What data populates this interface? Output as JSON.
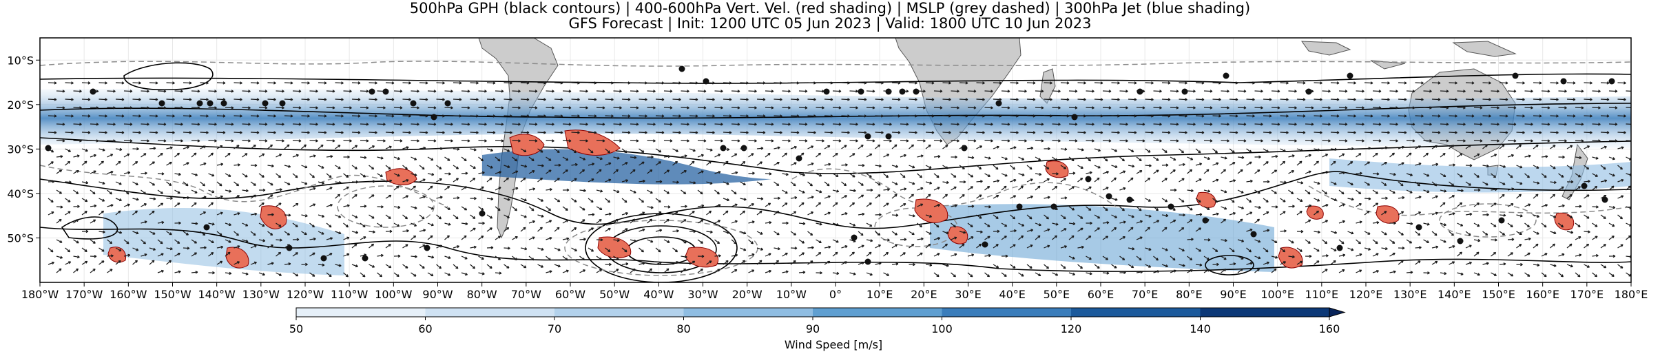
{
  "chart_data": {
    "type": "map",
    "title_line1": "500hPa GPH (black contours) | 400-600hPa Vert. Vel. (red shading) | MSLP (grey dashed) | 300hPa Jet (blue shading)",
    "title_line2": "GFS Forecast | Init: 1200 UTC 05 Jun 2023 | Valid: 1800 UTC 10 Jun 2023",
    "x_ticks": [
      "180°W",
      "170°W",
      "160°W",
      "150°W",
      "140°W",
      "130°W",
      "120°W",
      "110°W",
      "100°W",
      "90°W",
      "80°W",
      "70°W",
      "60°W",
      "50°W",
      "40°W",
      "30°W",
      "20°W",
      "10°W",
      "0°",
      "10°E",
      "20°E",
      "30°E",
      "40°E",
      "50°E",
      "60°E",
      "70°E",
      "80°E",
      "90°E",
      "100°E",
      "110°E",
      "120°E",
      "130°E",
      "140°E",
      "150°E",
      "160°E",
      "170°E",
      "180°E"
    ],
    "y_ticks": [
      {
        "lat": -10,
        "label": "10°S"
      },
      {
        "lat": -20,
        "label": "20°S"
      },
      {
        "lat": -30,
        "label": "30°S"
      },
      {
        "lat": -40,
        "label": "40°S"
      },
      {
        "lat": -50,
        "label": "50°S"
      }
    ],
    "lon_range": [
      -180,
      180
    ],
    "lat_range": [
      -60,
      -5
    ],
    "colorbar": {
      "label": "Wind Speed [m/s]",
      "ticks": [
        50,
        60,
        70,
        80,
        90,
        100,
        120,
        140,
        160
      ],
      "extend": "max",
      "colors": [
        "#ffffff",
        "#e6f0f9",
        "#cfe2f3",
        "#b3d2ec",
        "#8fbde2",
        "#5f9fd1",
        "#3a7dbb",
        "#1b5a9c",
        "#0c3877",
        "#08245a"
      ]
    },
    "colors": {
      "land": "#cccccc",
      "gph_contour": "#000000",
      "mslp_contour": "#8a8a8a",
      "vertical_velocity": "#e8705a",
      "vertical_velocity_edge": "#8b0000",
      "jet": "#4a90c8"
    }
  }
}
